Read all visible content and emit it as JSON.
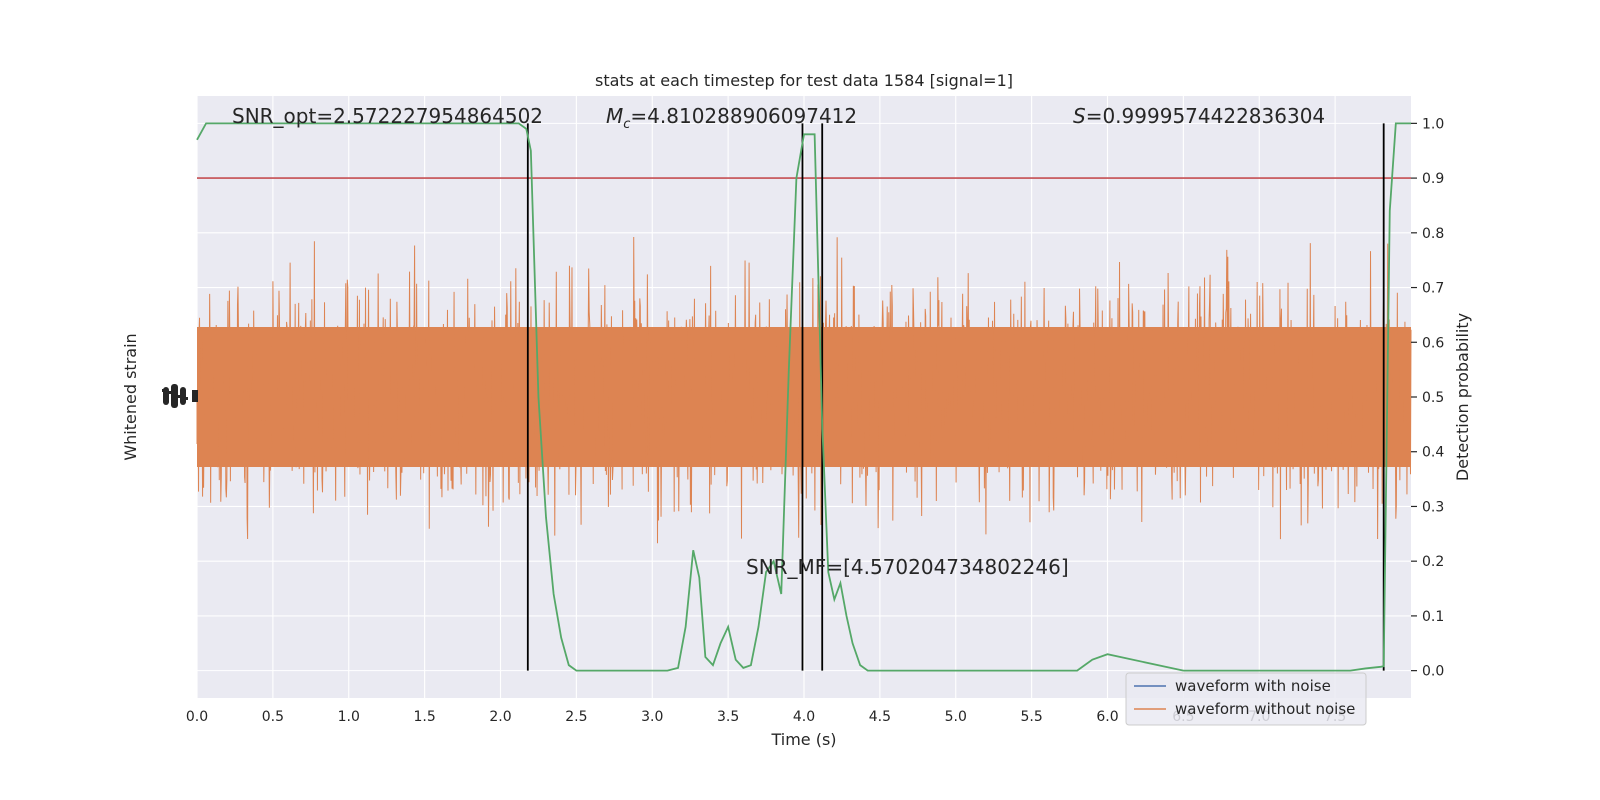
{
  "chart_data": {
    "type": "line",
    "title": "stats at each timestep for test data 1584 [signal=1]",
    "xlabel": "Time (s)",
    "ylabel_left": "Whitened strain",
    "ylabel_right": "Detection probability",
    "xlim": [
      0,
      8
    ],
    "ylim_right": [
      -0.05,
      1.05
    ],
    "x_ticks": [
      "0.0",
      "0.5",
      "1.0",
      "1.5",
      "2.0",
      "2.5",
      "3.0",
      "3.5",
      "4.0",
      "4.5",
      "5.0",
      "5.5",
      "6.0",
      "6.5",
      "7.0",
      "7.5"
    ],
    "y_ticks_right": [
      "0.0",
      "0.1",
      "0.2",
      "0.3",
      "0.4",
      "0.5",
      "0.6",
      "0.7",
      "0.8",
      "0.9",
      "1.0"
    ],
    "grid": true,
    "legend_placement": "lower-right",
    "series": [
      {
        "name": "waveform with noise",
        "color": "#4c72b0"
      },
      {
        "name": "waveform without noise",
        "color": "#dd8452"
      }
    ],
    "detection_probability": {
      "color": "#55a868",
      "x": [
        0.0,
        0.06,
        0.2,
        0.5,
        1.0,
        1.5,
        2.0,
        2.12,
        2.17,
        2.2,
        2.25,
        2.3,
        2.35,
        2.4,
        2.45,
        2.5,
        2.6,
        2.8,
        3.0,
        3.1,
        3.17,
        3.22,
        3.27,
        3.31,
        3.35,
        3.4,
        3.45,
        3.5,
        3.55,
        3.6,
        3.65,
        3.7,
        3.75,
        3.8,
        3.85,
        3.9,
        3.95,
        4.0,
        4.03,
        4.07,
        4.12,
        4.16,
        4.2,
        4.24,
        4.28,
        4.32,
        4.37,
        4.42,
        4.47,
        4.55,
        5.0,
        5.5,
        5.8,
        5.85,
        5.9,
        6.0,
        6.5,
        7.0,
        7.5,
        7.6,
        7.7,
        7.8,
        7.82,
        7.86,
        7.9,
        7.95,
        8.0
      ],
      "y": [
        0.97,
        1.0,
        1.0,
        1.0,
        1.0,
        1.0,
        1.0,
        1.0,
        0.99,
        0.95,
        0.5,
        0.28,
        0.14,
        0.06,
        0.01,
        0.0,
        0.0,
        0.0,
        0.0,
        0.0,
        0.005,
        0.08,
        0.22,
        0.17,
        0.025,
        0.01,
        0.05,
        0.08,
        0.02,
        0.005,
        0.01,
        0.08,
        0.18,
        0.2,
        0.14,
        0.55,
        0.9,
        0.98,
        0.98,
        0.98,
        0.45,
        0.18,
        0.13,
        0.16,
        0.1,
        0.05,
        0.01,
        0.0,
        0.0,
        0.0,
        0.0,
        0.0,
        0.0,
        0.01,
        0.02,
        0.03,
        0.0,
        0.0,
        0.0,
        0.0,
        0.004,
        0.007,
        0.008,
        0.84,
        1.0,
        1.0,
        1.0
      ]
    },
    "threshold": {
      "y": 0.9,
      "color": "#c44e52"
    },
    "vertical_markers": {
      "x": [
        2.18,
        3.99,
        4.12,
        7.82
      ],
      "color": "#000000"
    },
    "annotations": {
      "snr_opt": "SNR_opt=2.572227954864502",
      "mc_symbol": "M",
      "mc_sub": "c",
      "mc_value": "=4.810288906097412",
      "s_symbol": "S",
      "s_value": "=0.9999574422836304",
      "snr_mf": "SNR_MF=[4.570204734802246]"
    }
  }
}
